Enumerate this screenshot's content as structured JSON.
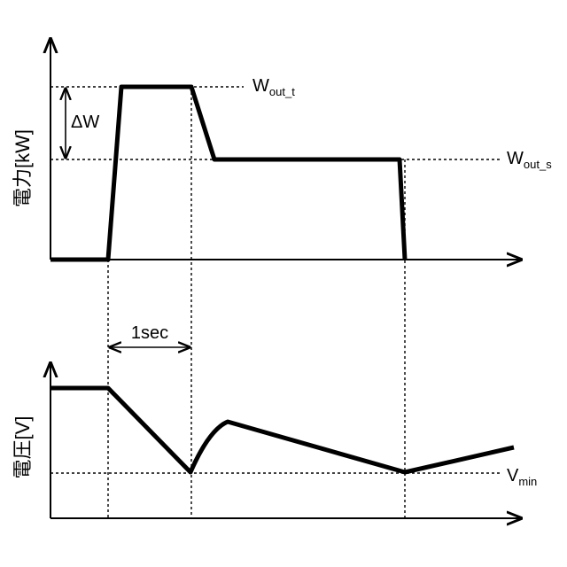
{
  "top_chart": {
    "y_axis_label": "電力[kW]",
    "line_label_peak": {
      "main": "W",
      "sub": "out_t"
    },
    "line_label_steady": {
      "main": "W",
      "sub": "out_s"
    },
    "delta_label": "ΔW"
  },
  "bottom_chart": {
    "y_axis_label": "電圧[V]",
    "line_label_min": {
      "main": "V",
      "sub": "min"
    }
  },
  "interval_label": "1sec"
}
